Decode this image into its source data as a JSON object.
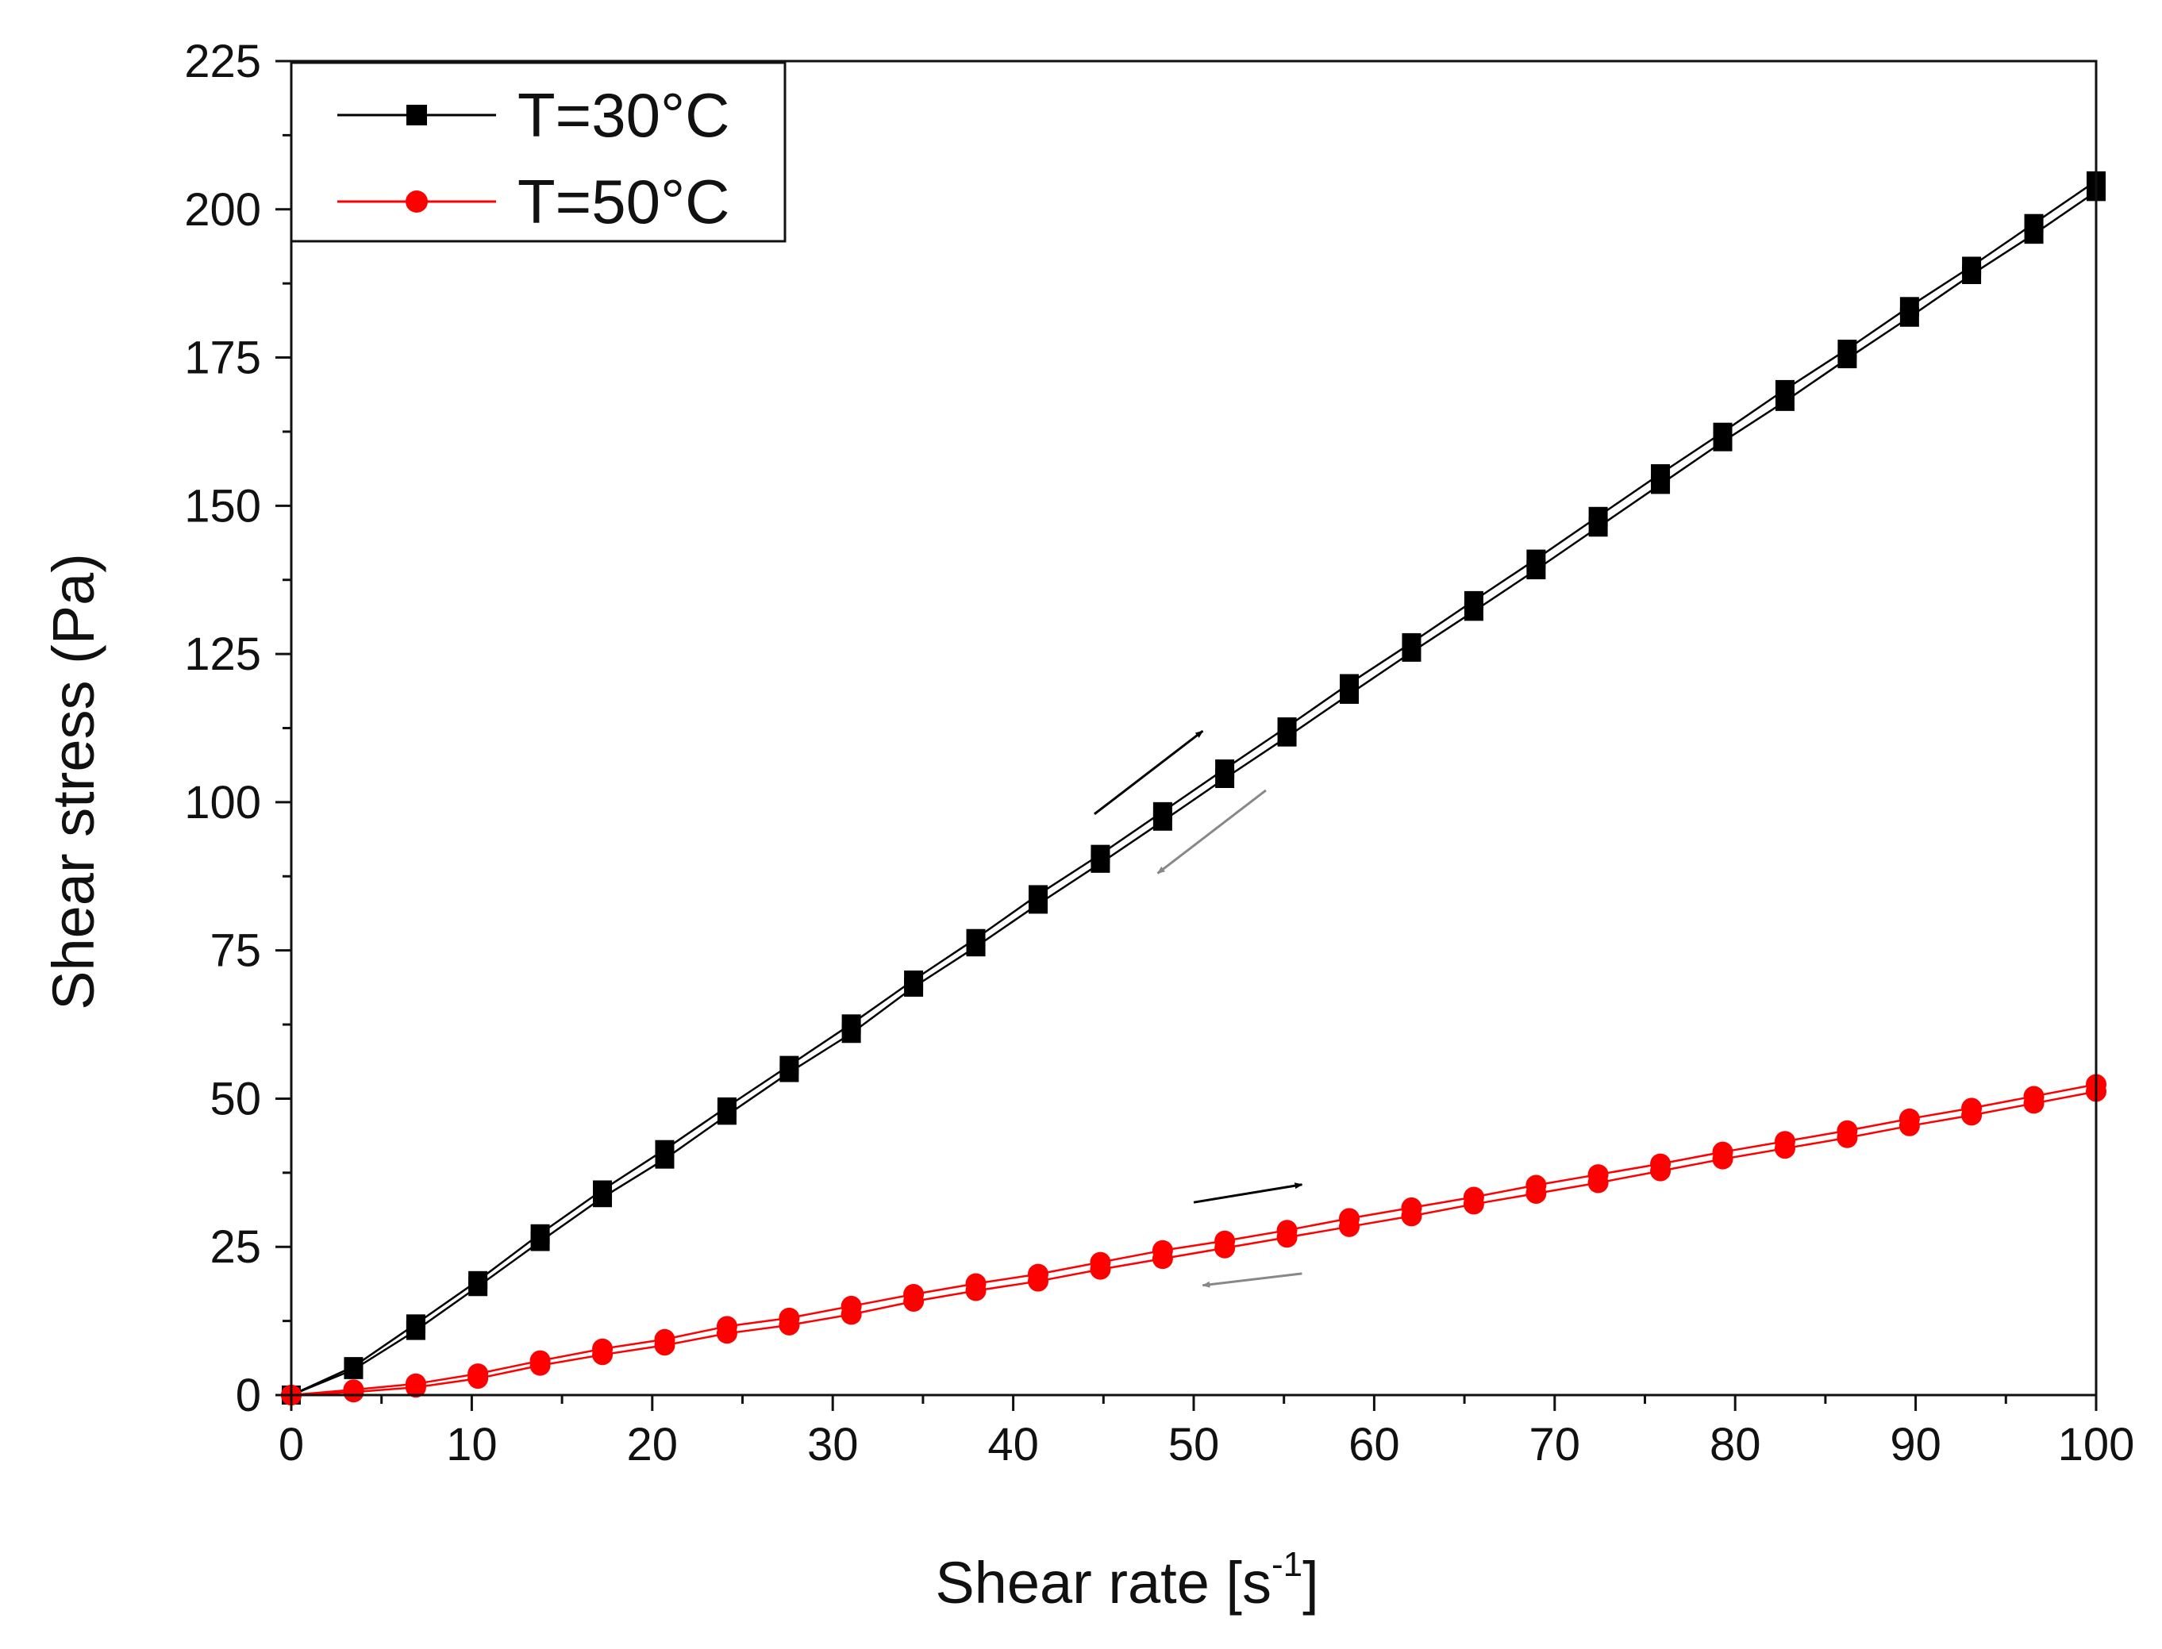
{
  "chart_data": {
    "type": "line",
    "title": "",
    "xlabel": "Shear rate [s",
    "xlabel_sup": "-1",
    "xlabel_close": "]",
    "ylabel": "Shear stress (Pa)",
    "xlim": [
      0,
      100
    ],
    "ylim": [
      0,
      225
    ],
    "xticks": [
      "0",
      "10",
      "20",
      "30",
      "40",
      "50",
      "60",
      "70",
      "80",
      "90",
      "100"
    ],
    "yticks": [
      "0",
      "25",
      "50",
      "75",
      "100",
      "125",
      "150",
      "175",
      "200",
      "225"
    ],
    "grid": false,
    "legend_position": "top-left",
    "series": [
      {
        "name": "T=30°C",
        "color": "#000000",
        "marker": "square",
        "x": [
          0,
          3.45,
          6.9,
          10.34,
          13.79,
          17.24,
          20.69,
          24.14,
          27.59,
          31.03,
          34.48,
          37.93,
          41.38,
          44.83,
          48.28,
          51.72,
          55.17,
          58.62,
          62.07,
          65.52,
          68.97,
          72.41,
          75.86,
          79.31,
          82.76,
          86.21,
          89.66,
          93.1,
          96.55,
          100
        ],
        "up": [
          0,
          4.8,
          12.0,
          19.3,
          27.2,
          34.6,
          41.4,
          48.6,
          55.6,
          62.6,
          70.0,
          77.0,
          84.4,
          91.2,
          98.4,
          105.6,
          112.7,
          120.0,
          126.9,
          134.0,
          141.0,
          148.2,
          155.4,
          162.4,
          169.6,
          176.4,
          183.6,
          190.4,
          197.6,
          204.8
        ],
        "down": [
          0,
          4.3,
          10.9,
          18.3,
          25.9,
          33.3,
          39.8,
          47.2,
          54.4,
          61.0,
          68.8,
          75.6,
          82.8,
          89.7,
          96.8,
          104.0,
          111.0,
          118.2,
          125.3,
          132.2,
          139.2,
          146.4,
          153.6,
          160.8,
          167.6,
          174.8,
          181.8,
          189.0,
          195.8,
          203.0
        ]
      },
      {
        "name": "T=50°C",
        "color": "#ff0000",
        "marker": "circle",
        "x": [
          0,
          3.45,
          6.9,
          10.34,
          13.79,
          17.24,
          20.69,
          24.14,
          27.59,
          31.03,
          34.48,
          37.93,
          41.38,
          44.83,
          48.28,
          51.72,
          55.17,
          58.62,
          62.07,
          65.52,
          68.97,
          72.41,
          75.86,
          79.31,
          82.76,
          86.21,
          89.66,
          93.1,
          96.55,
          100
        ],
        "up": [
          0,
          0.9,
          1.9,
          3.6,
          5.8,
          7.8,
          9.4,
          11.6,
          13.0,
          15.0,
          17.0,
          18.8,
          20.4,
          22.4,
          24.4,
          26.0,
          27.8,
          29.8,
          31.6,
          33.4,
          35.4,
          37.2,
          39.0,
          41.0,
          42.8,
          44.6,
          46.6,
          48.4,
          50.4,
          52.4
        ],
        "down": [
          0,
          0.5,
          1.3,
          2.8,
          5.0,
          6.8,
          8.4,
          10.4,
          11.8,
          13.6,
          15.8,
          17.6,
          19.2,
          21.2,
          23.0,
          24.8,
          26.6,
          28.4,
          30.2,
          32.2,
          34.0,
          35.8,
          37.8,
          39.8,
          41.6,
          43.4,
          45.4,
          47.2,
          49.2,
          51.2
        ]
      }
    ],
    "annotations": [
      {
        "kind": "arrow",
        "color": "#000000",
        "from": [
          44.5,
          98
        ],
        "to": [
          50.5,
          112
        ]
      },
      {
        "kind": "arrow",
        "color": "#888888",
        "from": [
          54,
          102
        ],
        "to": [
          48,
          88
        ]
      },
      {
        "kind": "arrow",
        "color": "#000000",
        "from": [
          50,
          32.5
        ],
        "to": [
          56,
          35.5
        ]
      },
      {
        "kind": "arrow",
        "color": "#888888",
        "from": [
          56,
          20.5
        ],
        "to": [
          50.5,
          18.5
        ]
      }
    ]
  }
}
